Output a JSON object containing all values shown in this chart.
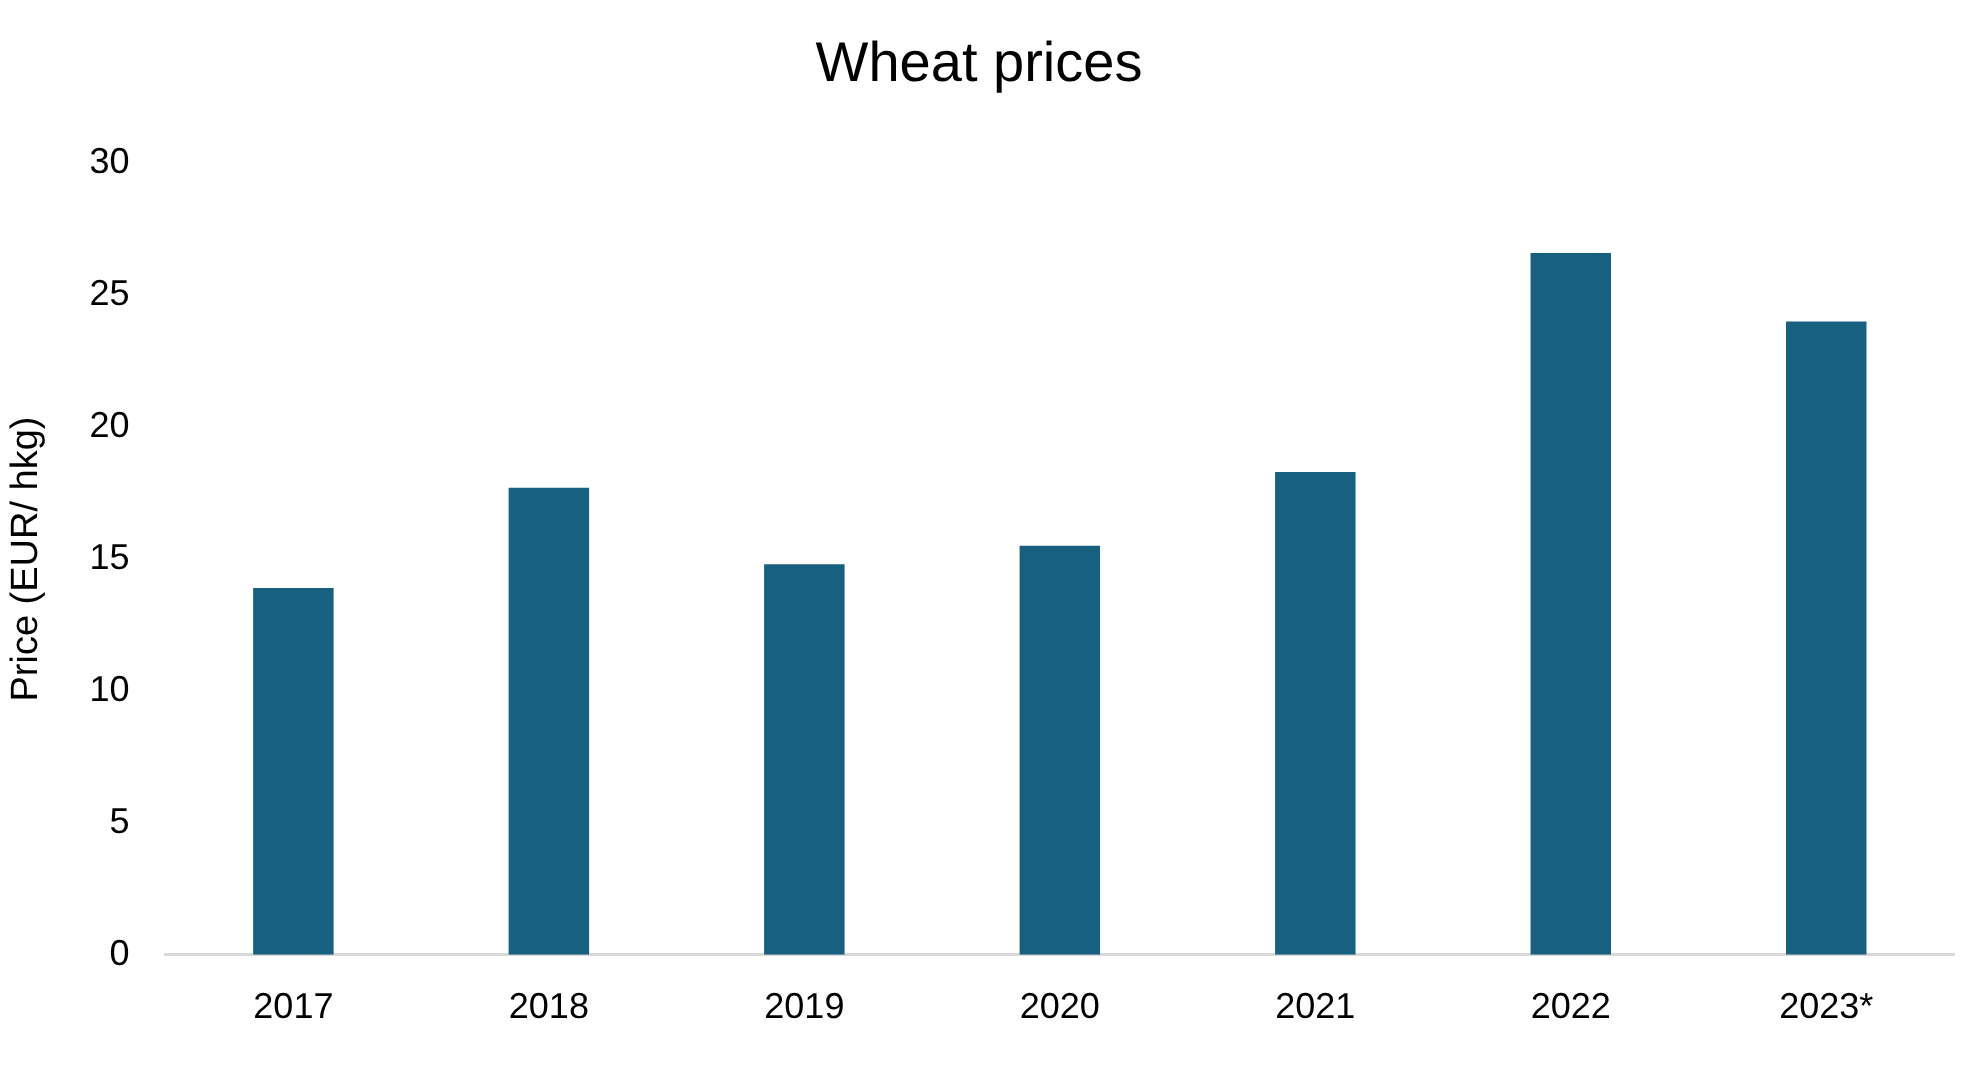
{
  "chart_data": {
    "type": "bar",
    "title": "Wheat prices",
    "ylabel": "Price (EUR/ hkg)",
    "categories": [
      "2017",
      "2018",
      "2019",
      "2020",
      "2021",
      "2022",
      "2023*"
    ],
    "values": [
      13.9,
      17.7,
      14.8,
      15.5,
      18.3,
      26.6,
      24.0
    ],
    "color": "#17607f",
    "ylim": [
      0,
      30
    ],
    "yticks": [
      0,
      5,
      10,
      15,
      20,
      25,
      30
    ],
    "grid": false,
    "legend": false
  }
}
